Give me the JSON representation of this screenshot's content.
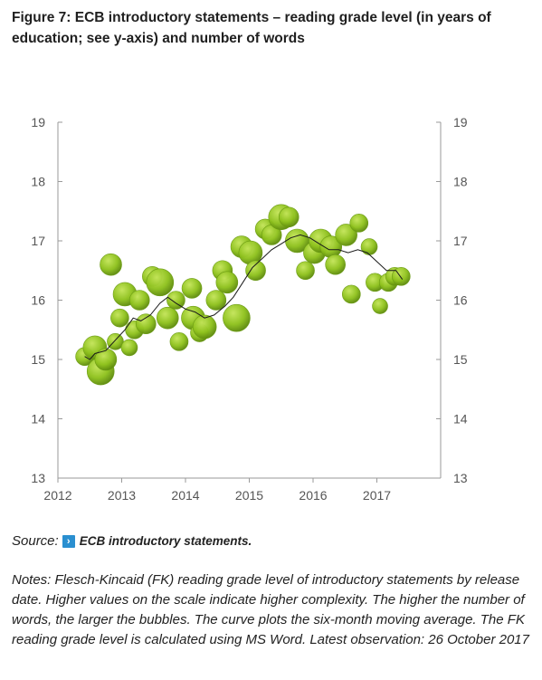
{
  "title": "Figure 7: ECB introductory statements – reading grade level (in years of education; see y-axis) and number of words",
  "source": {
    "label": "Source:",
    "link_text": "ECB introductory statements.",
    "link_icon": "chevron-right-icon"
  },
  "notes": "Notes: Flesch-Kincaid (FK) reading grade level of introductory statements by release date. Higher values on the scale indicate higher complexity. The higher the number of words, the larger the bubbles. The curve plots the six-month moving average. The FK reading grade level is calculated using MS Word. Latest observation: 26 October 2017",
  "colors": {
    "bubble": "#8fc21e",
    "bubble_stroke": "#6a9a12",
    "line": "#1a1a1a",
    "axis": "#9a9a9a",
    "tick_text": "#555555"
  },
  "chart_data": {
    "type": "scatter",
    "title": "",
    "xlabel": "",
    "ylabel": "",
    "xlim": [
      2012,
      2018
    ],
    "ylim": [
      13,
      19
    ],
    "x_ticks": [
      "2012",
      "2013",
      "2014",
      "2015",
      "2016",
      "2017"
    ],
    "y_ticks": [
      "13",
      "14",
      "15",
      "16",
      "17",
      "18",
      "19"
    ],
    "grid": false,
    "series": [
      {
        "kind": "bubbles",
        "points": [
          {
            "x": 2012.42,
            "y": 15.05,
            "size": 1.0
          },
          {
            "x": 2012.58,
            "y": 15.2,
            "size": 1.3
          },
          {
            "x": 2012.67,
            "y": 14.8,
            "size": 1.5
          },
          {
            "x": 2012.75,
            "y": 15.0,
            "size": 1.2
          },
          {
            "x": 2012.83,
            "y": 16.6,
            "size": 1.2
          },
          {
            "x": 2012.9,
            "y": 15.3,
            "size": 0.9
          },
          {
            "x": 2012.97,
            "y": 15.7,
            "size": 1.0
          },
          {
            "x": 2013.05,
            "y": 16.1,
            "size": 1.3
          },
          {
            "x": 2013.12,
            "y": 15.2,
            "size": 0.9
          },
          {
            "x": 2013.2,
            "y": 15.5,
            "size": 1.0
          },
          {
            "x": 2013.28,
            "y": 16.0,
            "size": 1.1
          },
          {
            "x": 2013.38,
            "y": 15.6,
            "size": 1.1
          },
          {
            "x": 2013.48,
            "y": 16.4,
            "size": 1.1
          },
          {
            "x": 2013.6,
            "y": 16.3,
            "size": 1.5
          },
          {
            "x": 2013.72,
            "y": 15.7,
            "size": 1.2
          },
          {
            "x": 2013.85,
            "y": 16.0,
            "size": 1.0
          },
          {
            "x": 2013.9,
            "y": 15.3,
            "size": 1.0
          },
          {
            "x": 2014.1,
            "y": 16.2,
            "size": 1.1
          },
          {
            "x": 2014.12,
            "y": 15.7,
            "size": 1.3
          },
          {
            "x": 2014.22,
            "y": 15.45,
            "size": 1.0
          },
          {
            "x": 2014.3,
            "y": 15.55,
            "size": 1.3
          },
          {
            "x": 2014.48,
            "y": 16.0,
            "size": 1.1
          },
          {
            "x": 2014.58,
            "y": 16.5,
            "size": 1.1
          },
          {
            "x": 2014.65,
            "y": 16.3,
            "size": 1.2
          },
          {
            "x": 2014.8,
            "y": 15.7,
            "size": 1.5
          },
          {
            "x": 2014.88,
            "y": 16.9,
            "size": 1.2
          },
          {
            "x": 2015.02,
            "y": 16.8,
            "size": 1.3
          },
          {
            "x": 2015.1,
            "y": 16.5,
            "size": 1.1
          },
          {
            "x": 2015.25,
            "y": 17.2,
            "size": 1.1
          },
          {
            "x": 2015.35,
            "y": 17.1,
            "size": 1.1
          },
          {
            "x": 2015.5,
            "y": 17.4,
            "size": 1.4
          },
          {
            "x": 2015.62,
            "y": 17.4,
            "size": 1.1
          },
          {
            "x": 2015.75,
            "y": 17.0,
            "size": 1.3
          },
          {
            "x": 2015.88,
            "y": 16.5,
            "size": 1.0
          },
          {
            "x": 2016.02,
            "y": 16.8,
            "size": 1.2
          },
          {
            "x": 2016.12,
            "y": 17.0,
            "size": 1.3
          },
          {
            "x": 2016.28,
            "y": 16.9,
            "size": 1.2
          },
          {
            "x": 2016.35,
            "y": 16.6,
            "size": 1.1
          },
          {
            "x": 2016.52,
            "y": 17.1,
            "size": 1.2
          },
          {
            "x": 2016.6,
            "y": 16.1,
            "size": 1.0
          },
          {
            "x": 2016.72,
            "y": 17.3,
            "size": 1.0
          },
          {
            "x": 2016.88,
            "y": 16.9,
            "size": 0.9
          },
          {
            "x": 2016.97,
            "y": 16.3,
            "size": 1.0
          },
          {
            "x": 2017.05,
            "y": 15.9,
            "size": 0.85
          },
          {
            "x": 2017.18,
            "y": 16.3,
            "size": 1.0
          },
          {
            "x": 2017.28,
            "y": 16.4,
            "size": 1.0
          },
          {
            "x": 2017.38,
            "y": 16.4,
            "size": 1.0
          }
        ]
      },
      {
        "kind": "line",
        "points": [
          {
            "x": 2012.42,
            "y": 15.05
          },
          {
            "x": 2012.5,
            "y": 15.0
          },
          {
            "x": 2012.58,
            "y": 15.1
          },
          {
            "x": 2012.75,
            "y": 15.15
          },
          {
            "x": 2012.92,
            "y": 15.35
          },
          {
            "x": 2013.05,
            "y": 15.5
          },
          {
            "x": 2013.18,
            "y": 15.7
          },
          {
            "x": 2013.3,
            "y": 15.65
          },
          {
            "x": 2013.45,
            "y": 15.75
          },
          {
            "x": 2013.6,
            "y": 15.95
          },
          {
            "x": 2013.72,
            "y": 16.05
          },
          {
            "x": 2013.85,
            "y": 15.95
          },
          {
            "x": 2014.0,
            "y": 15.85
          },
          {
            "x": 2014.15,
            "y": 15.8
          },
          {
            "x": 2014.3,
            "y": 15.7
          },
          {
            "x": 2014.45,
            "y": 15.75
          },
          {
            "x": 2014.62,
            "y": 15.9
          },
          {
            "x": 2014.75,
            "y": 16.05
          },
          {
            "x": 2014.9,
            "y": 16.3
          },
          {
            "x": 2015.05,
            "y": 16.55
          },
          {
            "x": 2015.2,
            "y": 16.7
          },
          {
            "x": 2015.35,
            "y": 16.85
          },
          {
            "x": 2015.5,
            "y": 16.95
          },
          {
            "x": 2015.65,
            "y": 17.05
          },
          {
            "x": 2015.8,
            "y": 17.1
          },
          {
            "x": 2015.95,
            "y": 17.05
          },
          {
            "x": 2016.1,
            "y": 16.95
          },
          {
            "x": 2016.25,
            "y": 16.85
          },
          {
            "x": 2016.4,
            "y": 16.85
          },
          {
            "x": 2016.55,
            "y": 16.8
          },
          {
            "x": 2016.7,
            "y": 16.85
          },
          {
            "x": 2016.85,
            "y": 16.8
          },
          {
            "x": 2017.0,
            "y": 16.65
          },
          {
            "x": 2017.15,
            "y": 16.5
          },
          {
            "x": 2017.3,
            "y": 16.5
          },
          {
            "x": 2017.4,
            "y": 16.35
          }
        ]
      }
    ]
  }
}
